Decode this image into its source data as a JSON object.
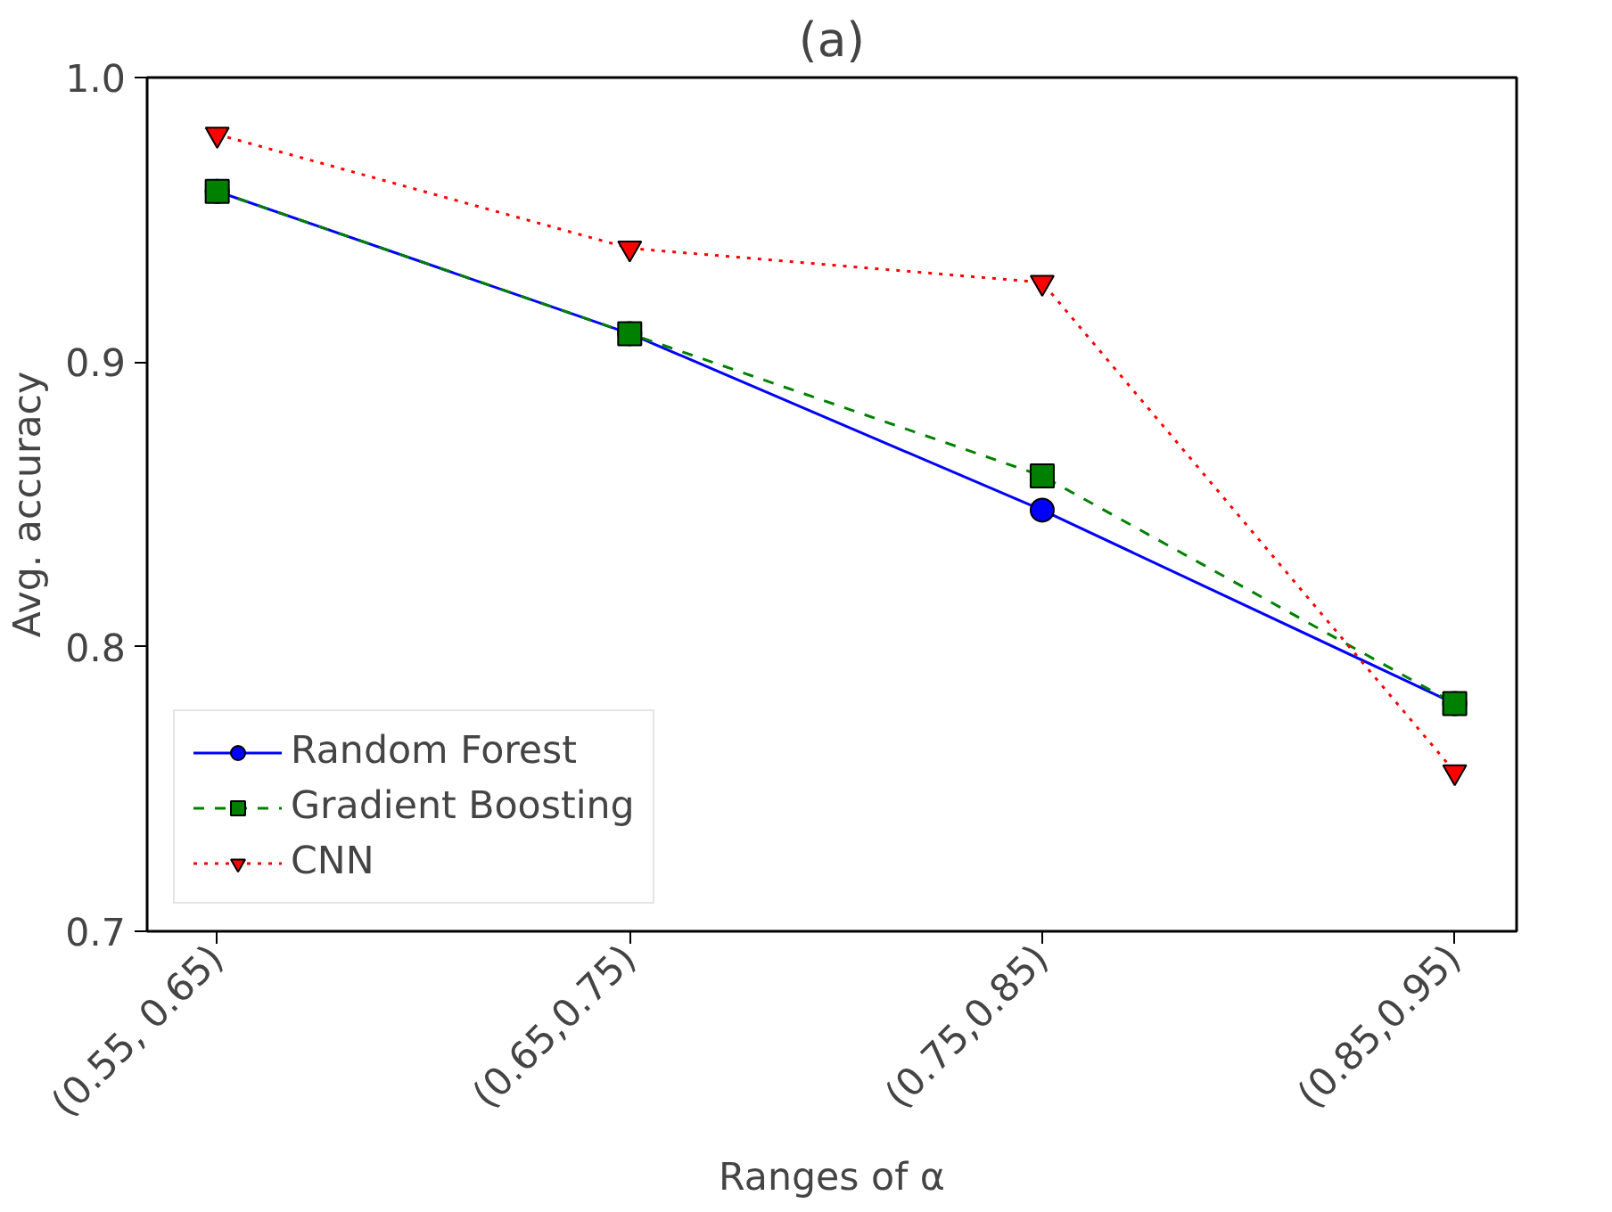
{
  "chart_data": {
    "type": "line",
    "title": "(a)",
    "xlabel": "Ranges of α",
    "ylabel": "Avg. accuracy",
    "categories": [
      "(0.55, 0.65)",
      "(0.65,0.75)",
      "(0.75,0.85)",
      "(0.85,0.95)"
    ],
    "series": [
      {
        "name": "Random Forest",
        "color": "#0000ff",
        "values": [
          0.96,
          0.91,
          0.848,
          0.78
        ],
        "marker": "circle",
        "line_style": "solid"
      },
      {
        "name": "Gradient Boosting",
        "color": "#008000",
        "values": [
          0.96,
          0.91,
          0.86,
          0.78
        ],
        "marker": "square",
        "line_style": "dashed"
      },
      {
        "name": "CNN",
        "color": "#ff0000",
        "values": [
          0.98,
          0.94,
          0.928,
          0.756
        ],
        "marker": "triangle",
        "line_style": "dotted"
      }
    ],
    "ylim": [
      0.7,
      1.0
    ],
    "yticks": [
      {
        "value": 0.7,
        "label": "0.7"
      },
      {
        "value": 0.8,
        "label": "0.8"
      },
      {
        "value": 0.9,
        "label": "0.9"
      },
      {
        "value": 1.0,
        "label": "1.0"
      }
    ],
    "grid": false,
    "legend": "bottom left"
  }
}
